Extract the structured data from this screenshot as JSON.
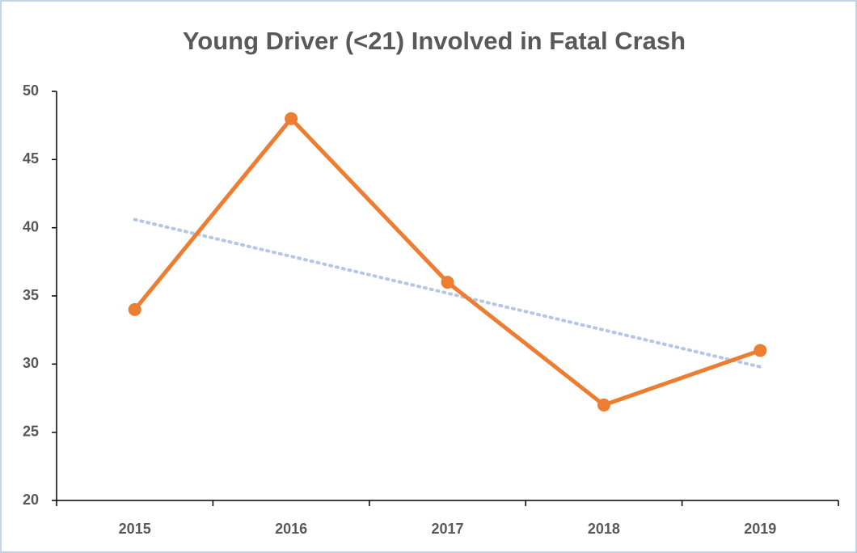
{
  "chart_data": {
    "type": "line",
    "title": "Young Driver (<21) Involved in Fatal Crash",
    "categories": [
      "2015",
      "2016",
      "2017",
      "2018",
      "2019"
    ],
    "series": [
      {
        "name": "Young Driver (<21) Involved in Fatal Crash",
        "color": "#ed7d31",
        "values": [
          34,
          48,
          36,
          27,
          31
        ]
      }
    ],
    "trendline": {
      "type": "linear",
      "color": "#b4c7e7"
    },
    "ylim": [
      20,
      50
    ],
    "yticks": [
      20,
      25,
      30,
      35,
      40,
      45,
      50
    ],
    "grid": false
  }
}
